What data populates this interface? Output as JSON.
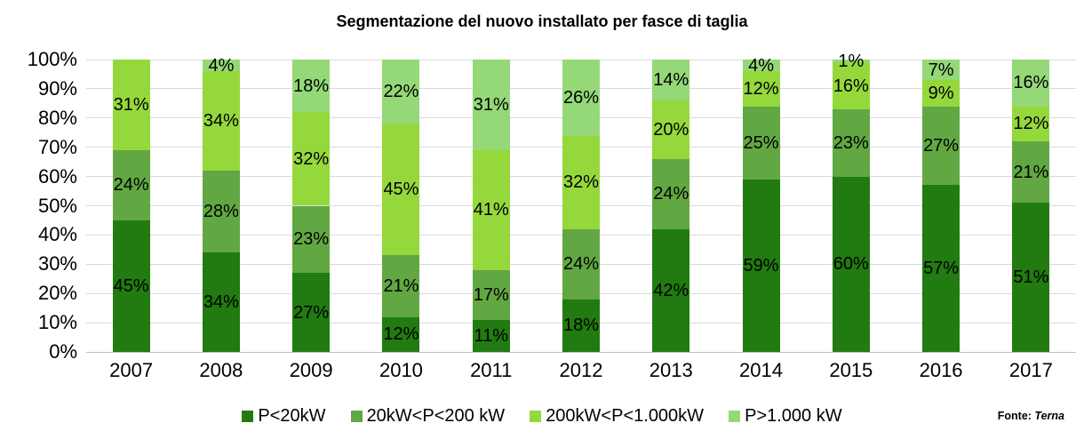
{
  "title": "Segmentazione del nuovo installato per fasce di taglia",
  "source": {
    "label": "Fonte:",
    "name": "Terna"
  },
  "colors": {
    "grid": "#D9D9D9",
    "axis_line": "#BFBFBF",
    "text": "#000000",
    "background": "#FFFFFF"
  },
  "chart_data": {
    "type": "bar",
    "stacked": "100%",
    "title": "Segmentazione del nuovo installato per fasce di taglia",
    "categories": [
      "2007",
      "2008",
      "2009",
      "2010",
      "2011",
      "2012",
      "2013",
      "2014",
      "2015",
      "2016",
      "2017"
    ],
    "series": [
      {
        "name": "P<20kW",
        "color": "#217B10",
        "values": [
          45,
          34,
          27,
          12,
          11,
          18,
          42,
          59,
          60,
          57,
          51
        ]
      },
      {
        "name": "20kW<P<200 kW",
        "color": "#61A843",
        "values": [
          24,
          28,
          23,
          21,
          17,
          24,
          24,
          25,
          23,
          27,
          21
        ]
      },
      {
        "name": "200kW<P<1.000kW",
        "color": "#95D83C",
        "values": [
          31,
          34,
          32,
          45,
          41,
          32,
          20,
          12,
          16,
          9,
          12
        ]
      },
      {
        "name": "P>1.000 kW",
        "color": "#94D878",
        "values": [
          0,
          4,
          18,
          22,
          31,
          26,
          14,
          4,
          1,
          7,
          16
        ]
      }
    ],
    "data_label_suffix": "%",
    "y_ticks": [
      "100%",
      "90%",
      "80%",
      "70%",
      "60%",
      "50%",
      "40%",
      "30%",
      "20%",
      "10%",
      "0%"
    ],
    "ylim": [
      0,
      100
    ],
    "grid": true,
    "legend_position": "bottom",
    "source_note": "Fonte: Terna"
  }
}
